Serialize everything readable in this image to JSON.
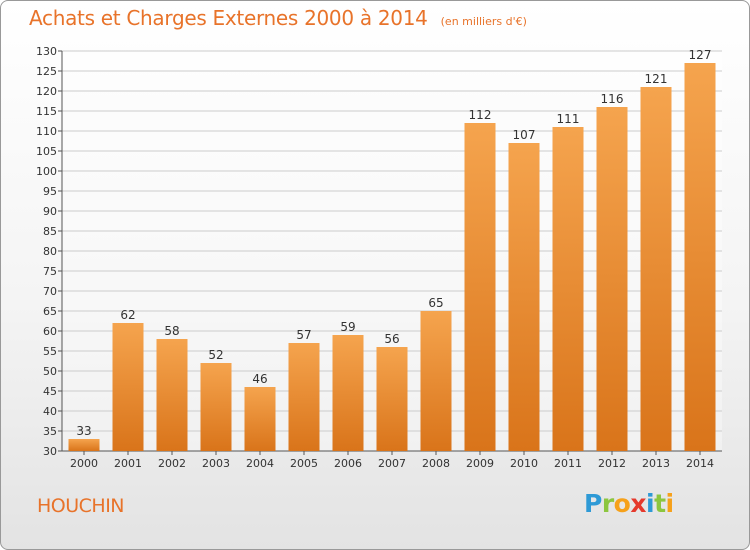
{
  "header": {
    "title": "Achats et Charges Externes 2000 à 2014",
    "subtitle": "(en milliers d'€)"
  },
  "footer": {
    "place": "HOUCHIN",
    "logo": "Proxiti"
  },
  "colors": {
    "accent": "#e8732a",
    "bar_light": "#f5a44e",
    "bar_dark": "#d9741a",
    "grid": "#cccccc"
  },
  "chart_data": {
    "type": "bar",
    "categories": [
      "2000",
      "2001",
      "2002",
      "2003",
      "2004",
      "2005",
      "2006",
      "2007",
      "2008",
      "2009",
      "2010",
      "2011",
      "2012",
      "2013",
      "2014"
    ],
    "values": [
      33,
      62,
      58,
      52,
      46,
      57,
      59,
      56,
      65,
      112,
      107,
      111,
      116,
      121,
      127
    ],
    "data_labels": [
      "33",
      "62",
      "58",
      "52",
      "46",
      "57",
      "59",
      "56",
      "65",
      "112",
      "107",
      "111",
      "116",
      "121",
      "127"
    ],
    "ylim": [
      30,
      130
    ],
    "ytick_step": 5,
    "grid": true,
    "legend": "none"
  }
}
